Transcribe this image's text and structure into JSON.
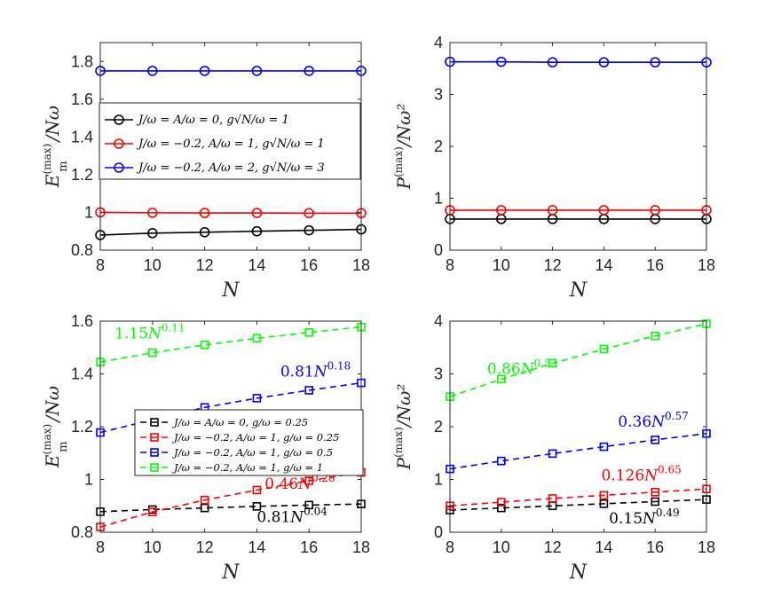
{
  "chart_data": [
    {
      "type": "line",
      "title": "",
      "xlabel": "N",
      "ylabel": "E_m^(max)/Nω",
      "ylabel_main": "E",
      "ylabel_sup": "(max)",
      "ylabel_sub": "m",
      "ylabel_tail": "/Nω",
      "xlim": [
        8,
        18
      ],
      "ylim": [
        0.8,
        1.9
      ],
      "xticks": [
        8,
        10,
        12,
        14,
        16,
        18
      ],
      "yticks": [
        0.8,
        1,
        1.2,
        1.4,
        1.6,
        1.8
      ],
      "ytick_labels": [
        "0.8",
        "1",
        "1.2",
        "1.4",
        "1.6",
        "1.8"
      ],
      "marker": "circle",
      "linestyle": "solid",
      "legend_position": "middle-left",
      "x": [
        8,
        10,
        12,
        14,
        16,
        18
      ],
      "series": [
        {
          "name": "J/ω = A/ω = 0, g√N/ω = 1",
          "color": "#000000",
          "values": [
            0.88,
            0.89,
            0.895,
            0.9,
            0.905,
            0.91
          ]
        },
        {
          "name": "J/ω = −0.2,  A/ω = 1,  g√N/ω = 1",
          "color": "#ff0000",
          "values": [
            1.0,
            0.998,
            0.997,
            0.997,
            0.996,
            0.996
          ]
        },
        {
          "name": "J/ω = −0.2,  A/ω = 2,  g√N/ω = 3",
          "color": "#0000ff",
          "values": [
            1.75,
            1.75,
            1.75,
            1.75,
            1.75,
            1.75
          ]
        }
      ],
      "annotations": []
    },
    {
      "type": "line",
      "title": "",
      "xlabel": "N",
      "ylabel": "P^(max)/Nω^2",
      "ylabel_main": "P",
      "ylabel_sup": "(max)",
      "ylabel_sub": "",
      "ylabel_tail": "/Nω²",
      "xlim": [
        8,
        18
      ],
      "ylim": [
        0,
        4
      ],
      "xticks": [
        8,
        10,
        12,
        14,
        16,
        18
      ],
      "yticks": [
        0,
        1,
        2,
        3,
        4
      ],
      "ytick_labels": [
        "0",
        "1",
        "2",
        "3",
        "4"
      ],
      "marker": "circle",
      "linestyle": "solid",
      "legend_position": "none",
      "x": [
        8,
        10,
        12,
        14,
        16,
        18
      ],
      "series": [
        {
          "name": "J/ω = A/ω = 0, g√N/ω = 1",
          "color": "#000000",
          "values": [
            0.6,
            0.6,
            0.6,
            0.6,
            0.6,
            0.6
          ]
        },
        {
          "name": "J/ω = −0.2,  A/ω = 1,  g√N/ω = 1",
          "color": "#ff0000",
          "values": [
            0.77,
            0.77,
            0.77,
            0.77,
            0.77,
            0.77
          ]
        },
        {
          "name": "J/ω = −0.2,  A/ω = 2,  g√N/ω = 3",
          "color": "#0000ff",
          "values": [
            3.63,
            3.63,
            3.62,
            3.62,
            3.62,
            3.62
          ]
        }
      ],
      "annotations": []
    },
    {
      "type": "line",
      "title": "",
      "xlabel": "N",
      "ylabel": "E_m^(max)/Nω",
      "ylabel_main": "E",
      "ylabel_sup": "(max)",
      "ylabel_sub": "m",
      "ylabel_tail": "/Nω",
      "xlim": [
        8,
        18
      ],
      "ylim": [
        0.8,
        1.6
      ],
      "xticks": [
        8,
        10,
        12,
        14,
        16,
        18
      ],
      "yticks": [
        0.8,
        1,
        1.2,
        1.4,
        1.6
      ],
      "ytick_labels": [
        "0.8",
        "1",
        "1.2",
        "1.4",
        "1.6"
      ],
      "marker": "square",
      "linestyle": "dashed",
      "legend_position": "middle-left",
      "x": [
        8,
        10,
        12,
        14,
        16,
        18
      ],
      "series": [
        {
          "name": "J/ω = A/ω = 0, g/ω = 0.25",
          "color": "#000000",
          "values": [
            0.878,
            0.886,
            0.892,
            0.898,
            0.903,
            0.907
          ]
        },
        {
          "name": "J/ω = −0.2,  A/ω = 1,  g/ω = 0.25",
          "color": "#ff0000",
          "values": [
            0.82,
            0.877,
            0.922,
            0.96,
            0.995,
            1.027
          ]
        },
        {
          "name": "J/ω = −0.2,  A/ω = 1,  g/ω = 0.5",
          "color": "#0000ff",
          "values": [
            1.178,
            1.226,
            1.273,
            1.308,
            1.338,
            1.366
          ]
        },
        {
          "name": "J/ω = −0.2,  A/ω = 1,  g/ω = 1",
          "color": "#00ff00",
          "values": [
            1.445,
            1.48,
            1.51,
            1.535,
            1.557,
            1.578
          ]
        }
      ],
      "annotations": [
        {
          "text": "1.15N^0.11",
          "base": "1.15",
          "exp": "0.11",
          "color": "#00ff00",
          "at": [
            8.55,
            1.535
          ]
        },
        {
          "text": "0.81N^0.18",
          "base": "0.81",
          "exp": "0.18",
          "color": "#0000ff",
          "at": [
            14.9,
            1.39
          ]
        },
        {
          "text": "0.46N^0.28",
          "base": "0.46",
          "exp": "0.28",
          "color": "#ff0000",
          "at": [
            14.3,
            0.965
          ]
        },
        {
          "text": "0.81N^0.04",
          "base": "0.81",
          "exp": "0.04",
          "color": "#000000",
          "at": [
            14.0,
            0.838
          ]
        }
      ]
    },
    {
      "type": "line",
      "title": "",
      "xlabel": "N",
      "ylabel": "P^(max)/Nω^2",
      "ylabel_main": "P",
      "ylabel_sup": "(max)",
      "ylabel_sub": "",
      "ylabel_tail": "/Nω²",
      "xlim": [
        8,
        18
      ],
      "ylim": [
        0,
        4
      ],
      "xticks": [
        8,
        10,
        12,
        14,
        16,
        18
      ],
      "yticks": [
        0,
        1,
        2,
        3,
        4
      ],
      "ytick_labels": [
        "0",
        "1",
        "2",
        "3",
        "4"
      ],
      "marker": "square",
      "linestyle": "dashed",
      "legend_position": "none",
      "x": [
        8,
        10,
        12,
        14,
        16,
        18
      ],
      "series": [
        {
          "name": "J/ω = A/ω = 0, g/ω = 0.25",
          "color": "#000000",
          "values": [
            0.42,
            0.46,
            0.5,
            0.54,
            0.58,
            0.62
          ]
        },
        {
          "name": "J/ω = −0.2,  A/ω = 1,  g/ω = 0.25",
          "color": "#ff0000",
          "values": [
            0.5,
            0.57,
            0.64,
            0.7,
            0.76,
            0.82
          ]
        },
        {
          "name": "J/ω = −0.2,  A/ω = 1,  g/ω = 0.5",
          "color": "#0000ff",
          "values": [
            1.2,
            1.35,
            1.49,
            1.62,
            1.75,
            1.87
          ]
        },
        {
          "name": "J/ω = −0.2,  A/ω = 1,  g/ω = 1",
          "color": "#00ff00",
          "values": [
            2.57,
            2.9,
            3.2,
            3.47,
            3.72,
            3.95
          ]
        }
      ],
      "annotations": [
        {
          "text": "0.86N^0.53",
          "base": "0.86",
          "exp": "0.53",
          "color": "#00ff00",
          "at": [
            9.45,
            3.0
          ]
        },
        {
          "text": "0.36N^0.57",
          "base": "0.36",
          "exp": "0.57",
          "color": "#0000ff",
          "at": [
            14.55,
            2.0
          ]
        },
        {
          "text": "0.126N^0.65",
          "base": "0.126",
          "exp": "0.65",
          "color": "#ff0000",
          "at": [
            13.9,
            0.98
          ]
        },
        {
          "text": "0.15N^0.49",
          "base": "0.15",
          "exp": "0.49",
          "color": "#000000",
          "at": [
            14.2,
            0.17
          ]
        }
      ]
    }
  ]
}
